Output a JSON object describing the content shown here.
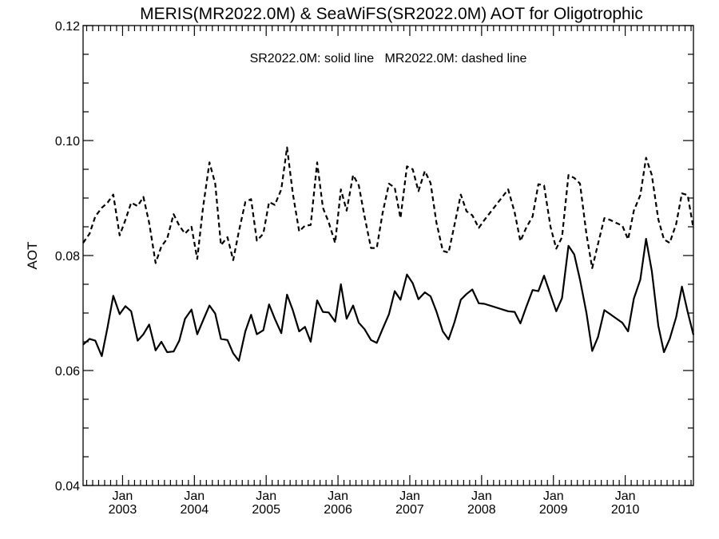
{
  "chart_data": {
    "type": "line",
    "title": "MERIS(MR2022.0M) & SeaWiFS(SR2022.0M)  AOT for Oligotrophic",
    "ylabel": "AOT",
    "annotation": "SR2022.0M: solid line   MR2022.0M: dashed line",
    "ylim": [
      0.04,
      0.12
    ],
    "xlim": [
      2002.45,
      2010.95
    ],
    "yticks": [
      0.04,
      0.06,
      0.08,
      0.1,
      0.12
    ],
    "ytick_labels": [
      "0.04",
      "0.06",
      "0.08",
      "0.10",
      "0.12"
    ],
    "xticks": [
      {
        "month": "Jan",
        "year": "2003",
        "x": 2003.0
      },
      {
        "month": "Jan",
        "year": "2004",
        "x": 2004.0
      },
      {
        "month": "Jan",
        "year": "2005",
        "x": 2005.0
      },
      {
        "month": "Jan",
        "year": "2006",
        "x": 2006.0
      },
      {
        "month": "Jan",
        "year": "2007",
        "x": 2007.0
      },
      {
        "month": "Jan",
        "year": "2008",
        "x": 2008.0
      },
      {
        "month": "Jan",
        "year": "2009",
        "x": 2009.0
      },
      {
        "month": "Jan",
        "year": "2010",
        "x": 2010.0
      }
    ],
    "grid": false,
    "series": [
      {
        "name": "SR2022.0M",
        "style": "solid",
        "color": "#000000",
        "x": [
          2002.45,
          2002.54,
          2002.62,
          2002.71,
          2002.79,
          2002.87,
          2002.96,
          2003.04,
          2003.12,
          2003.21,
          2003.29,
          2003.37,
          2003.46,
          2003.54,
          2003.62,
          2003.71,
          2003.79,
          2003.87,
          2003.96,
          2004.04,
          2004.12,
          2004.21,
          2004.29,
          2004.37,
          2004.46,
          2004.54,
          2004.62,
          2004.71,
          2004.79,
          2004.87,
          2004.96,
          2005.04,
          2005.12,
          2005.21,
          2005.29,
          2005.37,
          2005.46,
          2005.54,
          2005.62,
          2005.71,
          2005.79,
          2005.87,
          2005.96,
          2006.04,
          2006.12,
          2006.21,
          2006.29,
          2006.37,
          2006.46,
          2006.54,
          2006.62,
          2006.71,
          2006.79,
          2006.87,
          2006.96,
          2007.04,
          2007.12,
          2007.21,
          2007.29,
          2007.37,
          2007.46,
          2007.54,
          2007.62,
          2007.71,
          2007.79,
          2007.87,
          2007.96,
          2008.04,
          2008.37,
          2008.46,
          2008.54,
          2008.62,
          2008.71,
          2008.79,
          2008.87,
          2008.96,
          2009.04,
          2009.12,
          2009.21,
          2009.29,
          2009.37,
          2009.46,
          2009.54,
          2009.62,
          2009.71,
          2009.79,
          2009.87,
          2009.96,
          2010.04,
          2010.12,
          2010.21,
          2010.29,
          2010.37,
          2010.46,
          2010.54,
          2010.62,
          2010.71,
          2010.79,
          2010.87,
          2010.95
        ],
        "y": [
          0.0645,
          0.0655,
          0.0652,
          0.0625,
          0.0675,
          0.073,
          0.0698,
          0.0712,
          0.0703,
          0.0652,
          0.0663,
          0.068,
          0.0635,
          0.065,
          0.0632,
          0.0633,
          0.0652,
          0.069,
          0.0706,
          0.0663,
          0.0687,
          0.0713,
          0.0699,
          0.0655,
          0.0653,
          0.063,
          0.0617,
          0.0668,
          0.0697,
          0.0663,
          0.067,
          0.0715,
          0.069,
          0.0665,
          0.0732,
          0.0705,
          0.0668,
          0.0676,
          0.065,
          0.0722,
          0.0702,
          0.0701,
          0.0685,
          0.075,
          0.069,
          0.0713,
          0.0683,
          0.0672,
          0.0653,
          0.0648,
          0.0672,
          0.0698,
          0.0738,
          0.0723,
          0.0767,
          0.0752,
          0.0724,
          0.0736,
          0.0729,
          0.0703,
          0.0668,
          0.0654,
          0.0683,
          0.0723,
          0.0733,
          0.0741,
          0.0717,
          0.0716,
          0.0703,
          0.0702,
          0.0682,
          0.071,
          0.074,
          0.0738,
          0.0765,
          0.0732,
          0.0703,
          0.0726,
          0.0817,
          0.0802,
          0.0758,
          0.07,
          0.0634,
          0.0658,
          0.0705,
          0.0698,
          0.0691,
          0.0683,
          0.0668,
          0.0725,
          0.0758,
          0.0829,
          0.0773,
          0.0678,
          0.0632,
          0.0655,
          0.0693,
          0.0746,
          0.0702,
          0.0662
        ]
      },
      {
        "name": "MR2022.0M",
        "style": "dashed",
        "color": "#000000",
        "x": [
          2002.45,
          2002.54,
          2002.62,
          2002.71,
          2002.79,
          2002.87,
          2002.96,
          2003.04,
          2003.12,
          2003.21,
          2003.29,
          2003.37,
          2003.46,
          2003.54,
          2003.62,
          2003.71,
          2003.79,
          2003.87,
          2003.96,
          2004.04,
          2004.12,
          2004.21,
          2004.29,
          2004.37,
          2004.46,
          2004.54,
          2004.62,
          2004.71,
          2004.79,
          2004.87,
          2004.96,
          2005.04,
          2005.12,
          2005.21,
          2005.29,
          2005.37,
          2005.46,
          2005.54,
          2005.62,
          2005.71,
          2005.79,
          2005.87,
          2005.96,
          2006.04,
          2006.12,
          2006.21,
          2006.29,
          2006.37,
          2006.46,
          2006.54,
          2006.62,
          2006.71,
          2006.79,
          2006.87,
          2006.96,
          2007.04,
          2007.12,
          2007.21,
          2007.29,
          2007.37,
          2007.46,
          2007.54,
          2007.62,
          2007.71,
          2007.79,
          2007.87,
          2007.96,
          2008.04,
          2008.37,
          2008.46,
          2008.54,
          2008.62,
          2008.71,
          2008.79,
          2008.87,
          2008.96,
          2009.04,
          2009.12,
          2009.21,
          2009.29,
          2009.37,
          2009.46,
          2009.54,
          2009.62,
          2009.71,
          2009.79,
          2009.87,
          2009.96,
          2010.04,
          2010.12,
          2010.21,
          2010.29,
          2010.37,
          2010.46,
          2010.54,
          2010.62,
          2010.71,
          2010.79,
          2010.87,
          2010.95
        ],
        "y": [
          0.0822,
          0.0838,
          0.0868,
          0.0883,
          0.0892,
          0.0906,
          0.0835,
          0.0862,
          0.0892,
          0.0886,
          0.0902,
          0.0857,
          0.0787,
          0.0816,
          0.0829,
          0.0872,
          0.0852,
          0.0838,
          0.085,
          0.0794,
          0.0883,
          0.0962,
          0.0925,
          0.0818,
          0.0832,
          0.0792,
          0.0842,
          0.0893,
          0.0898,
          0.0826,
          0.0838,
          0.0893,
          0.0888,
          0.0915,
          0.0988,
          0.0908,
          0.0842,
          0.0852,
          0.0853,
          0.0962,
          0.0883,
          0.0858,
          0.0822,
          0.0915,
          0.0878,
          0.094,
          0.0922,
          0.0868,
          0.0813,
          0.0813,
          0.0873,
          0.0925,
          0.0918,
          0.0865,
          0.0955,
          0.095,
          0.0912,
          0.0947,
          0.0926,
          0.0858,
          0.0808,
          0.0805,
          0.0852,
          0.0906,
          0.0877,
          0.087,
          0.0848,
          0.0862,
          0.0915,
          0.0875,
          0.0825,
          0.0848,
          0.0868,
          0.0924,
          0.0922,
          0.085,
          0.0812,
          0.0832,
          0.094,
          0.0935,
          0.0925,
          0.0837,
          0.0778,
          0.082,
          0.0865,
          0.0862,
          0.0857,
          0.0852,
          0.0828,
          0.0878,
          0.0905,
          0.097,
          0.094,
          0.0863,
          0.0828,
          0.0822,
          0.0855,
          0.0908,
          0.0905,
          0.0847
        ]
      }
    ]
  }
}
